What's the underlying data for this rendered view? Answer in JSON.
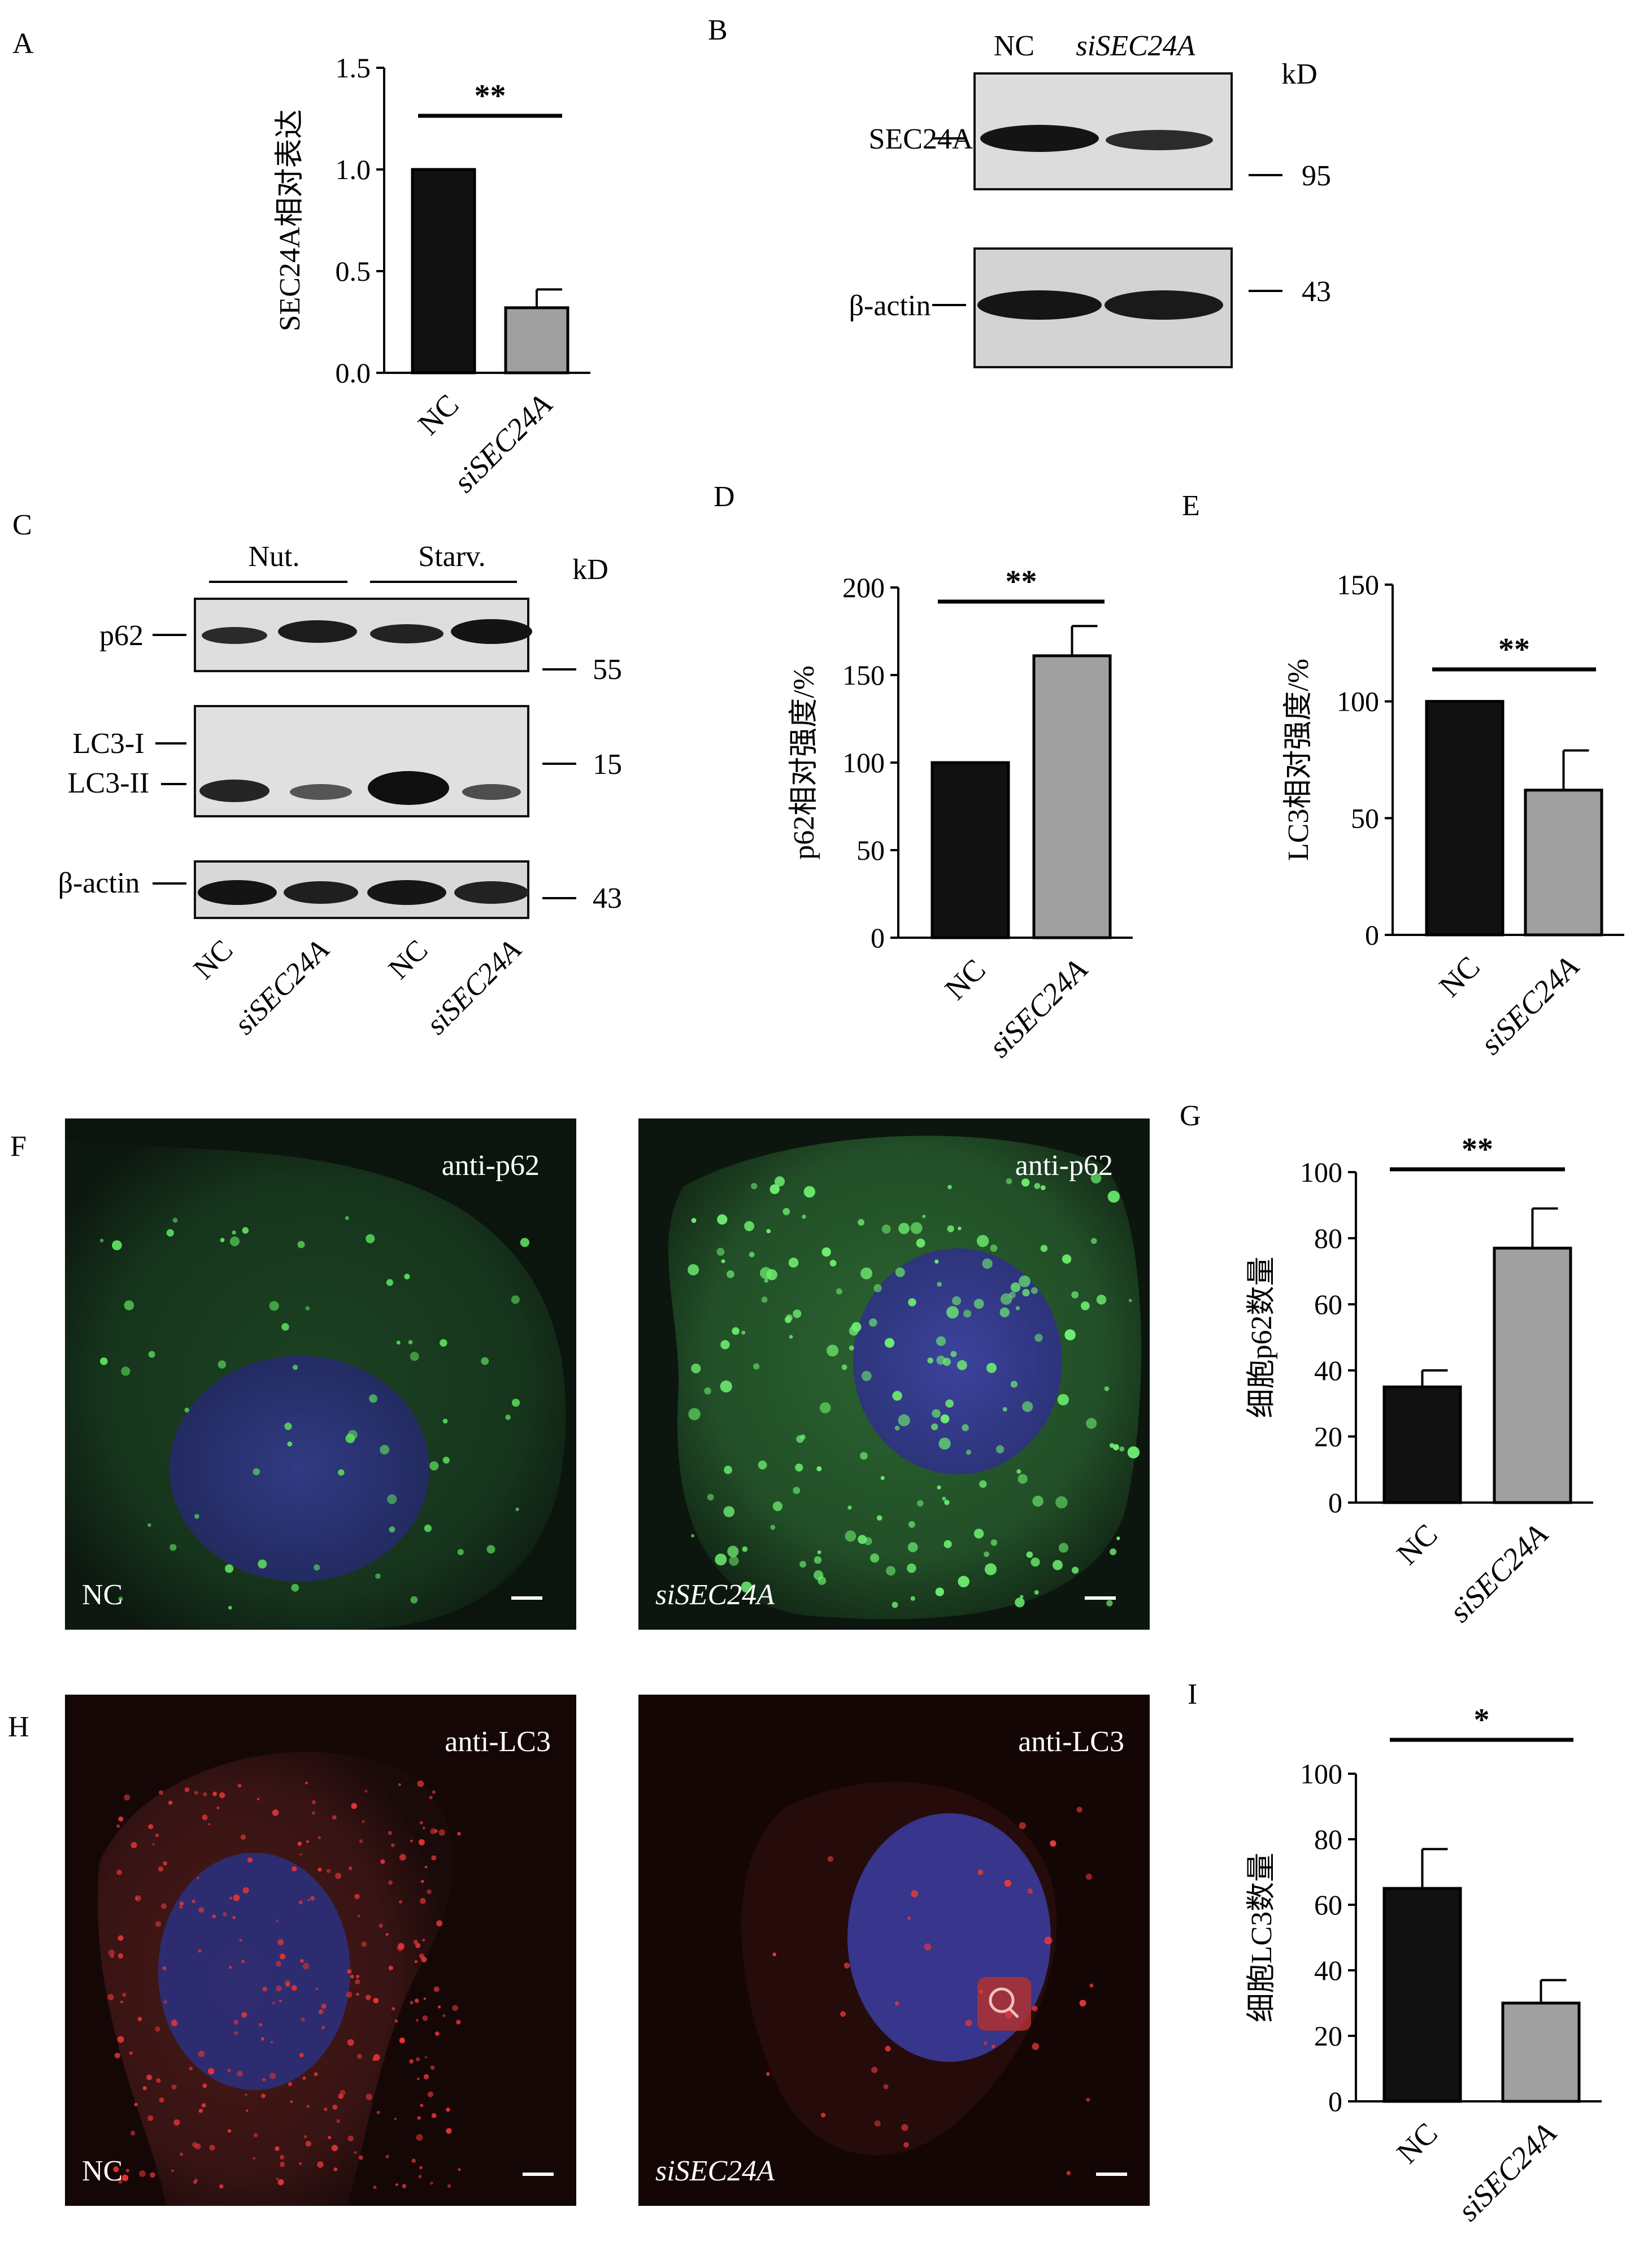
{
  "panels": {
    "A": "A",
    "B": "B",
    "C": "C",
    "D": "D",
    "E": "E",
    "F": "F",
    "G": "G",
    "H": "H",
    "I": "I"
  },
  "colors": {
    "nc_bar": "#111111",
    "si_bar": "#a0a0a0",
    "p62_green": "#39d23a",
    "nucleus_blue": "#3a3aa0",
    "lc3_red": "#e03030"
  },
  "labels": {
    "nc": "NC",
    "si": "siSEC24A",
    "kd": "kD"
  },
  "blot_b": {
    "rows": [
      {
        "label": "SEC24A",
        "marker": "95"
      },
      {
        "label": "β-actin",
        "marker": "43"
      }
    ]
  },
  "blot_c": {
    "groups": [
      "Nut.",
      "Starv."
    ],
    "rows": [
      {
        "label": "p62",
        "marker": "55"
      },
      {
        "label": "LC3-I",
        "marker": "15"
      },
      {
        "label": "LC3-II",
        "marker": ""
      },
      {
        "label": "β-actin",
        "marker": "43"
      }
    ],
    "lanes": [
      "NC",
      "siSEC24A",
      "NC",
      "siSEC24A"
    ]
  },
  "micrographs": {
    "f_left_title": "anti-p62",
    "f_right_title": "anti-p62",
    "h_left_title": "anti-LC3",
    "h_right_title": "anti-LC3"
  },
  "chart_data": [
    {
      "id": "A",
      "type": "bar",
      "categories": [
        "NC",
        "siSEC24A"
      ],
      "values": [
        1.0,
        0.32
      ],
      "errors": [
        0,
        0.09
      ],
      "ylabel": "SEC24A相对表达",
      "ylim": [
        0,
        1.5
      ],
      "yticks": [
        "0.0",
        "0.5",
        "1.0",
        "1.5"
      ],
      "significance": "**"
    },
    {
      "id": "D",
      "type": "bar",
      "categories": [
        "NC",
        "siSEC24A"
      ],
      "values": [
        100,
        161
      ],
      "errors": [
        0,
        17
      ],
      "ylabel": "p62相对强度/%",
      "ylim": [
        0,
        200
      ],
      "yticks": [
        "0",
        "50",
        "100",
        "150",
        "200"
      ],
      "significance": "**"
    },
    {
      "id": "E",
      "type": "bar",
      "categories": [
        "NC",
        "siSEC24A"
      ],
      "values": [
        100,
        62
      ],
      "errors": [
        0,
        17
      ],
      "ylabel": "LC3相对强度/%",
      "ylim": [
        0,
        150
      ],
      "yticks": [
        "0",
        "50",
        "100",
        "150"
      ],
      "significance": "**"
    },
    {
      "id": "G",
      "type": "bar",
      "categories": [
        "NC",
        "siSEC24A"
      ],
      "values": [
        35,
        77
      ],
      "errors": [
        5,
        12
      ],
      "ylabel": "细胞p62数量",
      "ylim": [
        0,
        100
      ],
      "yticks": [
        "0",
        "20",
        "40",
        "60",
        "80",
        "100"
      ],
      "significance": "**"
    },
    {
      "id": "I",
      "type": "bar",
      "categories": [
        "NC",
        "siSEC24A"
      ],
      "values": [
        65,
        30
      ],
      "errors": [
        12,
        7
      ],
      "ylabel": "细胞LC3数量",
      "ylim": [
        0,
        100
      ],
      "yticks": [
        "0",
        "20",
        "40",
        "60",
        "80",
        "100"
      ],
      "significance": "*"
    }
  ]
}
